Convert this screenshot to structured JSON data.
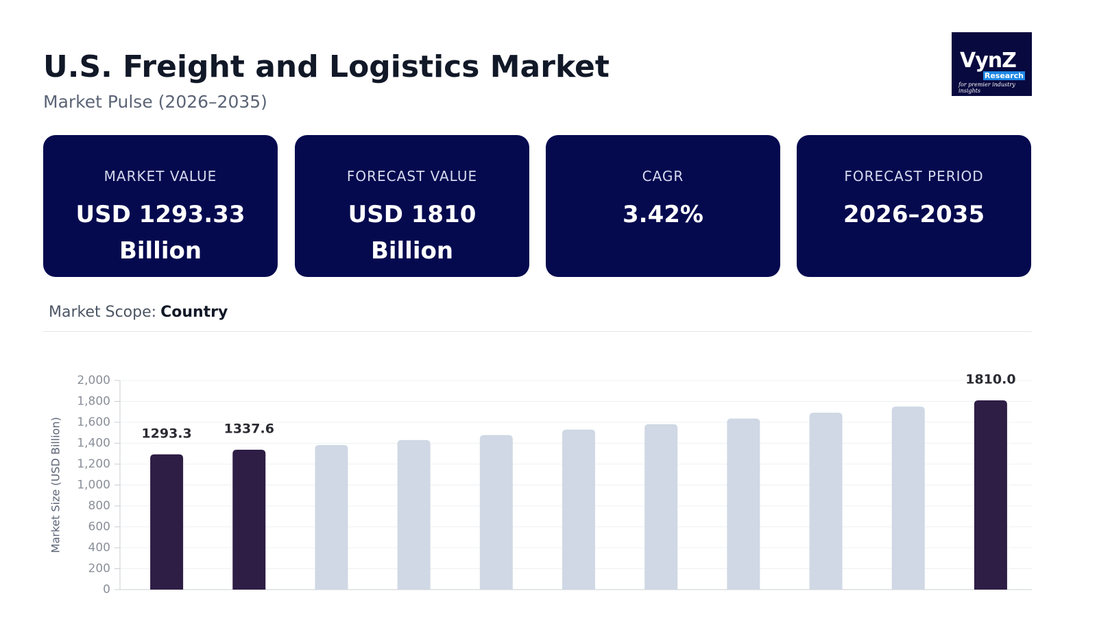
{
  "header": {
    "title": "U.S. Freight and Logistics Market",
    "subtitle": "Market Pulse (2026–2035)"
  },
  "logo": {
    "name": "VynZ",
    "sub": "Research",
    "tagline": "for premier industry insights"
  },
  "cards": [
    {
      "label": "MARKET VALUE",
      "value": "USD 1293.33 Billion"
    },
    {
      "label": "FORECAST VALUE",
      "value": "USD 1810 Billion"
    },
    {
      "label": "CAGR",
      "value": "3.42%"
    },
    {
      "label": "FORECAST PERIOD",
      "value": "2026–2035"
    }
  ],
  "scope": {
    "label": "Market Scope:",
    "value": "Country"
  },
  "chart_data": {
    "type": "bar",
    "y_label": "Market Size (USD Billion)",
    "categories": [
      null,
      null,
      null,
      null,
      null,
      null,
      null,
      null,
      null,
      null,
      null
    ],
    "values": [
      1293.3,
      1337.6,
      1383,
      1430,
      1478,
      1530,
      1582,
      1636,
      1692,
      1750,
      1810.0
    ],
    "value_labels": [
      "1293.3",
      "1337.6",
      null,
      null,
      null,
      null,
      null,
      null,
      null,
      null,
      "1810.0"
    ],
    "colors": [
      "#2e1d45",
      "#2e1d45",
      "#cfd8e4",
      "#cfd8e4",
      "#cfd8e4",
      "#cfd8e4",
      "#cfd8e4",
      "#cfd8e4",
      "#cfd8e4",
      "#cfd8e4",
      "#2e1d45"
    ],
    "ylim": [
      0,
      2000
    ],
    "yticks": [
      0,
      200,
      400,
      600,
      800,
      {
        "value": 1000,
        "label": "1,000"
      },
      {
        "value": 1200,
        "label": "1,200"
      },
      {
        "value": 1400,
        "label": "1,400"
      },
      {
        "value": 1600,
        "label": "1,600"
      },
      {
        "value": 1800,
        "label": "1,800"
      },
      {
        "value": 2000,
        "label": "2,000"
      }
    ],
    "grid": true
  }
}
